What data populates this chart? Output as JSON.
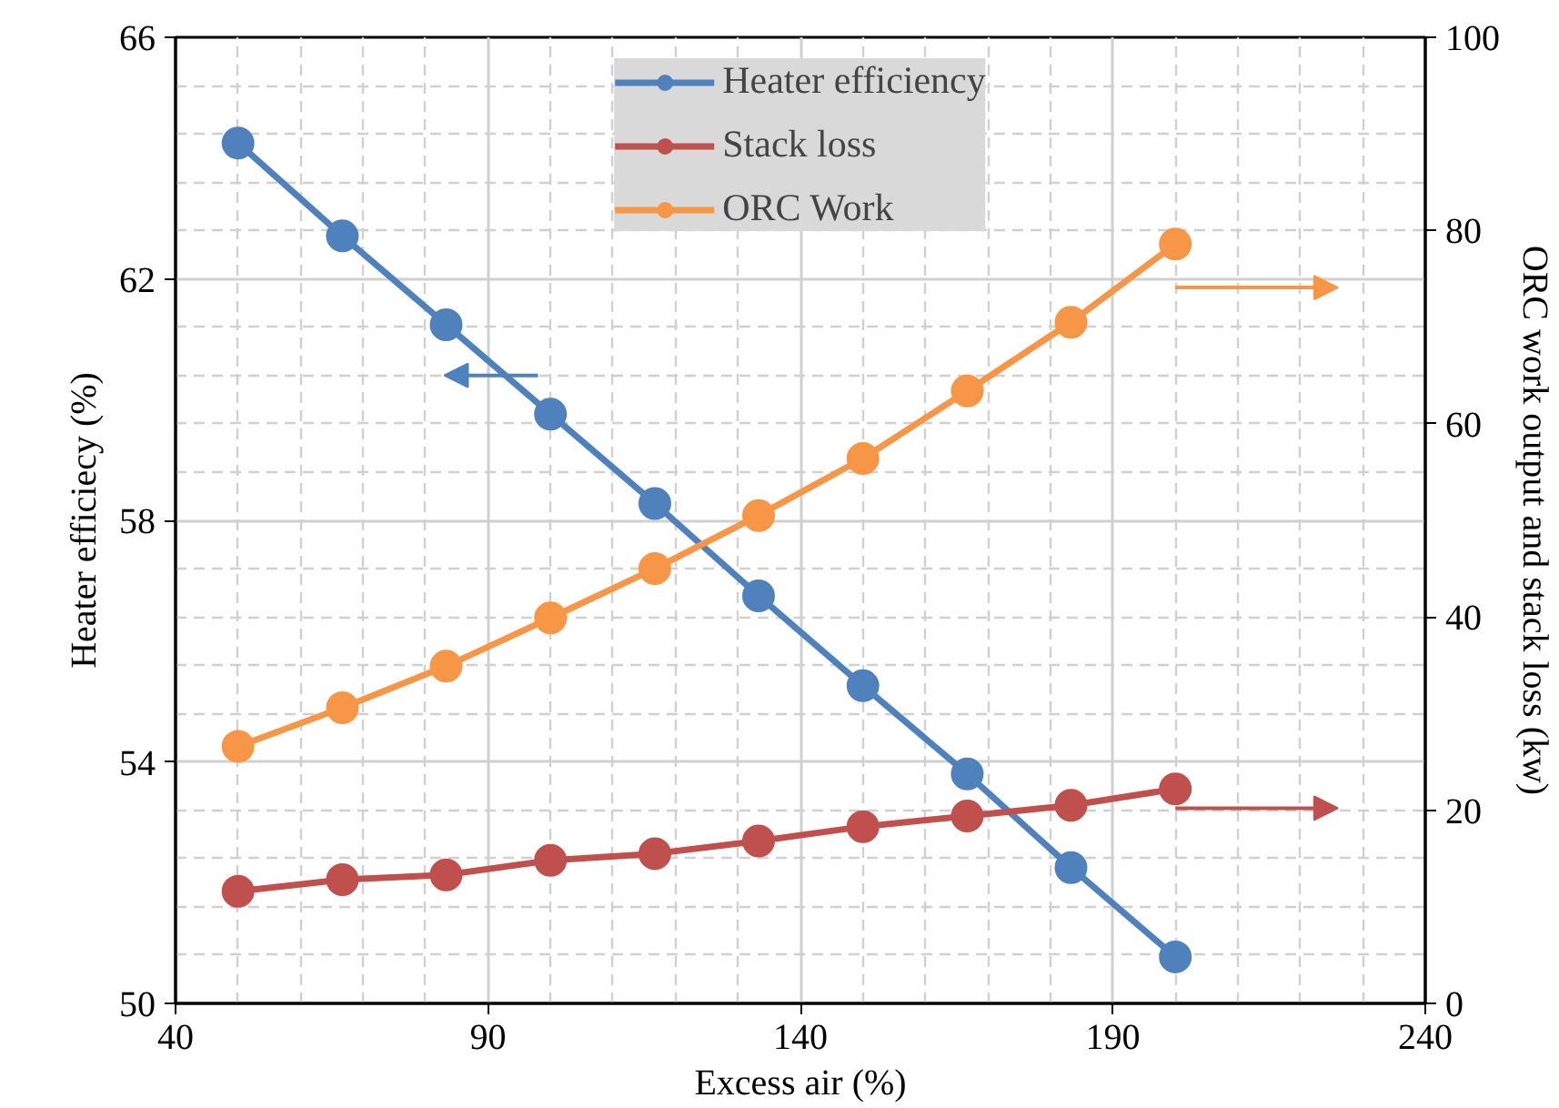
{
  "chart_data": {
    "type": "line",
    "xlabel": "Excess air (%)",
    "ylabel": "Heater efficiecy (%)",
    "y2label": "ORC work output and stack loss (kw)",
    "x": [
      50,
      66.7,
      83.3,
      100,
      116.7,
      133.3,
      150,
      166.7,
      183.3,
      200
    ],
    "series": [
      {
        "name": "Heater efficiency",
        "color": "#4f81bd",
        "values": [
          64.25,
          62.71,
          61.24,
          59.76,
          58.28,
          56.75,
          55.26,
          53.8,
          52.25,
          50.77
        ]
      },
      {
        "name": "Stack loss",
        "color": "#c0504d",
        "axis": "y2",
        "values": [
          11.6,
          12.8,
          13.3,
          14.8,
          15.5,
          16.8,
          18.3,
          19.4,
          20.5,
          22.2
        ]
      },
      {
        "name": "ORC Work",
        "color": "#f79646",
        "axis": "y2",
        "values": [
          26.6,
          30.6,
          34.9,
          39.9,
          45.0,
          50.5,
          56.4,
          63.4,
          70.5,
          78.6
        ]
      }
    ],
    "xlim": [
      40,
      240
    ],
    "xticks": [
      40,
      90,
      140,
      190,
      240
    ],
    "ylim": [
      50,
      66
    ],
    "yticks": [
      50,
      54,
      58,
      62,
      66
    ],
    "y2lim": [
      0,
      100
    ],
    "y2ticks": [
      0,
      20,
      40,
      60,
      80,
      100
    ],
    "grid": true,
    "legend": "top",
    "marker": "circle",
    "line_style": "solid"
  }
}
